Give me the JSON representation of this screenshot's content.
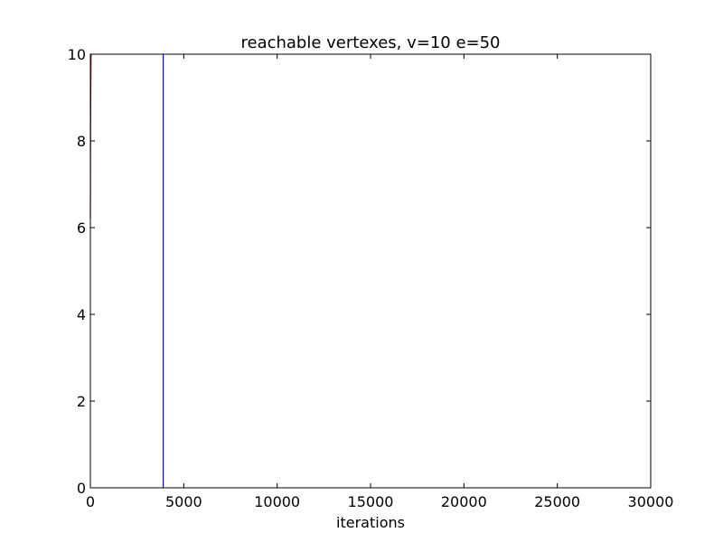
{
  "chart_data": {
    "type": "line",
    "title": "reachable vertexes, v=10 e=50",
    "xlabel": "iterations",
    "ylabel": "",
    "xlim": [
      0,
      30000
    ],
    "ylim": [
      0,
      10
    ],
    "xticks": [
      0,
      5000,
      10000,
      15000,
      20000,
      25000,
      30000
    ],
    "xtick_labels": [
      "0",
      "5000",
      "10000",
      "15000",
      "20000",
      "25000",
      "30000"
    ],
    "yticks": [
      0,
      2,
      4,
      6,
      8,
      10
    ],
    "ytick_labels": [
      "0",
      "2",
      "4",
      "6",
      "8",
      "10"
    ],
    "grid": false,
    "series": [
      {
        "color": "#8b1a1a",
        "x": [
          0,
          10,
          20,
          30,
          40,
          60
        ],
        "y": [
          6.2,
          8.0,
          9.0,
          9.6,
          10,
          10
        ]
      }
    ],
    "vlines": [
      {
        "x": 3900,
        "color": "#0000ff"
      }
    ]
  }
}
